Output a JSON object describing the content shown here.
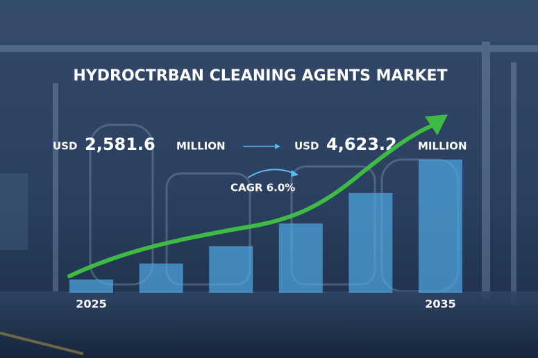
{
  "chart_data": {
    "type": "bar",
    "title": "HYDROCTRBAN CLEANING AGENTS MARKET",
    "start_annotation": {
      "prefix": "USD",
      "amount": "2,581.6",
      "unit": "MILLION"
    },
    "end_annotation": {
      "prefix": "USD",
      "amount": "4,623.2",
      "unit": "MILLION"
    },
    "cagr_annotation": "CAGR 6.0%",
    "categories": [
      "2025",
      null,
      null,
      null,
      null,
      "2035"
    ],
    "values": [
      10,
      22,
      35,
      52,
      75,
      100
    ],
    "ylim": [
      0,
      100
    ],
    "color": "#4fa9e6"
  }
}
